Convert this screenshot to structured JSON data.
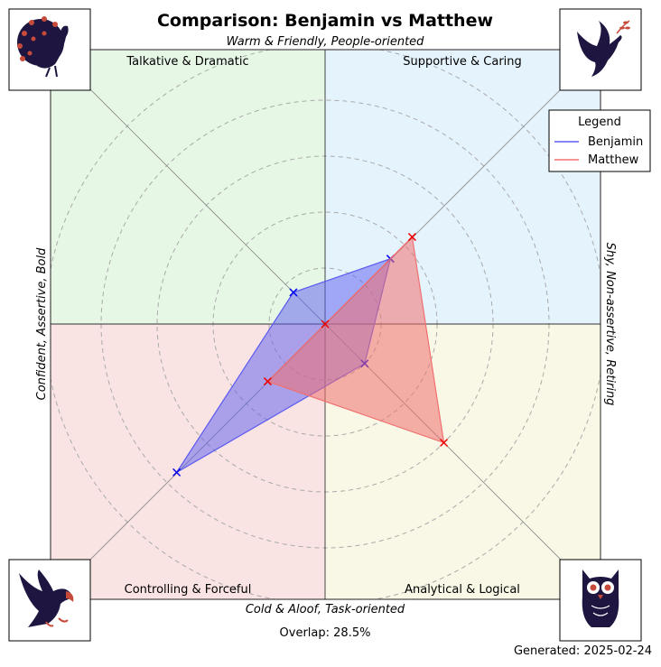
{
  "chart_data": {
    "type": "radar",
    "title": "Comparison: Benjamin vs Matthew",
    "axes": {
      "top": "Warm & Friendly, People-oriented",
      "bottom": "Cold & Aloof, Task-oriented",
      "left": "Confident, Assertive, Bold",
      "right": "Shy, Non-assertive, Retiring"
    },
    "quadrants": {
      "top_left": "Talkative & Dramatic",
      "top_right": "Supportive & Caring",
      "bottom_left": "Controlling & Forceful",
      "bottom_right": "Analytical & Logical"
    },
    "quadrant_colors": {
      "top_left": "#e6f7e6",
      "top_right": "#e5f3fc",
      "bottom_left": "#f9e3e3",
      "bottom_right": "#f9f8e6"
    },
    "icons": {
      "top_left": "peacock-icon",
      "top_right": "dove-icon",
      "bottom_left": "eagle-icon",
      "bottom_right": "owl-icon"
    },
    "directions": [
      "supportive",
      "analytical",
      "controlling",
      "talkative"
    ],
    "max_radius": 1.0,
    "grid": true,
    "grid_rings": [
      0.2,
      0.4,
      0.6,
      0.8,
      1.0
    ],
    "series": [
      {
        "name": "Benjamin",
        "color": "#5b5bf0",
        "values": {
          "supportive": 0.33,
          "analytical": 0.2,
          "controlling": 0.75,
          "talkative": 0.16
        }
      },
      {
        "name": "Matthew",
        "color": "#f07070",
        "values": {
          "supportive": 0.44,
          "analytical": 0.6,
          "controlling": 0.29,
          "talkative": 0.0
        }
      }
    ],
    "legend": {
      "title": "Legend",
      "placement": "top-right"
    },
    "overlap_label": "Overlap: 28.5%",
    "generated_label": "Generated: 2025-02-24"
  }
}
